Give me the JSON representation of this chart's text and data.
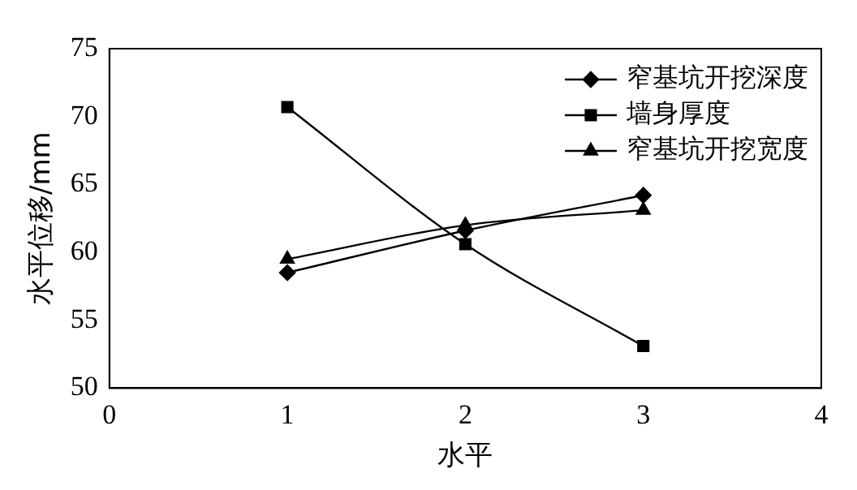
{
  "chart_data": {
    "type": "line",
    "xlabel": "水平",
    "ylabel": "水平位移/mm",
    "x": [
      1,
      2,
      3
    ],
    "xlim": [
      0,
      4
    ],
    "xticks": [
      0,
      1,
      2,
      3,
      4
    ],
    "ylim": [
      50,
      75
    ],
    "yticks": [
      50,
      55,
      60,
      65,
      70,
      75
    ],
    "grid": false,
    "legend": "top right",
    "line_style": "solid",
    "series": [
      {
        "name": "窄基坑开挖深度",
        "color": "#000000",
        "marker": "diamond",
        "values": [
          58.5,
          61.6,
          64.2
        ]
      },
      {
        "name": "墙身厚度",
        "color": "#000000",
        "marker": "square",
        "values": [
          70.7,
          60.6,
          53.1
        ]
      },
      {
        "name": "窄基坑开挖宽度",
        "color": "#000000",
        "marker": "triangle",
        "values": [
          59.5,
          62.0,
          63.1
        ]
      }
    ]
  }
}
